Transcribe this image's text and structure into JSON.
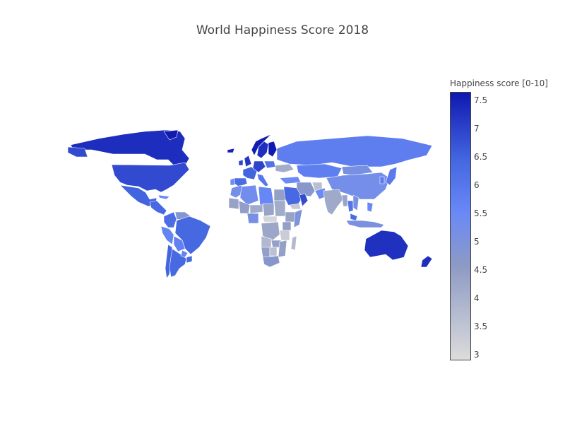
{
  "title": "World Happiness Score 2018",
  "colorbar": {
    "title": "Happiness score [0-10]",
    "min": 2.9,
    "max": 7.65,
    "ticks": [
      "3",
      "3.5",
      "4",
      "4.5",
      "5",
      "5.5",
      "6",
      "6.5",
      "7",
      "7.5"
    ],
    "colorscale": [
      [
        0.0,
        "#dcdcdc"
      ],
      [
        0.35,
        "#8d9ac4"
      ],
      [
        0.55,
        "#6a89f7"
      ],
      [
        0.75,
        "#4466e0"
      ],
      [
        1.0,
        "#0f18b0"
      ]
    ]
  },
  "countries": [
    {
      "name": "Canada",
      "score": 7.33
    },
    {
      "name": "United States",
      "score": 6.89
    },
    {
      "name": "Mexico",
      "score": 6.49
    },
    {
      "name": "Greenland",
      "score": 7.6
    },
    {
      "name": "Guatemala",
      "score": 6.38
    },
    {
      "name": "Cuba",
      "score": 5.5
    },
    {
      "name": "Colombia",
      "score": 6.26
    },
    {
      "name": "Venezuela",
      "score": 4.81
    },
    {
      "name": "Brazil",
      "score": 6.42
    },
    {
      "name": "Peru",
      "score": 5.66
    },
    {
      "name": "Bolivia",
      "score": 5.75
    },
    {
      "name": "Chile",
      "score": 6.48
    },
    {
      "name": "Argentina",
      "score": 6.39
    },
    {
      "name": "Paraguay",
      "score": 5.68
    },
    {
      "name": "Uruguay",
      "score": 6.38
    },
    {
      "name": "Norway",
      "score": 7.59
    },
    {
      "name": "Sweden",
      "score": 7.31
    },
    {
      "name": "Finland",
      "score": 7.63
    },
    {
      "name": "Iceland",
      "score": 7.5
    },
    {
      "name": "United Kingdom",
      "score": 7.19
    },
    {
      "name": "Ireland",
      "score": 6.98
    },
    {
      "name": "France",
      "score": 6.49
    },
    {
      "name": "Spain",
      "score": 6.31
    },
    {
      "name": "Portugal",
      "score": 5.41
    },
    {
      "name": "Germany",
      "score": 6.97
    },
    {
      "name": "Poland",
      "score": 6.12
    },
    {
      "name": "Italy",
      "score": 6.0
    },
    {
      "name": "Ukraine",
      "score": 4.1
    },
    {
      "name": "Turkey",
      "score": 5.48
    },
    {
      "name": "Russia",
      "score": 5.81
    },
    {
      "name": "Kazakhstan",
      "score": 5.79
    },
    {
      "name": "Mongolia",
      "score": 5.13
    },
    {
      "name": "China",
      "score": 5.25
    },
    {
      "name": "Japan",
      "score": 5.92
    },
    {
      "name": "Korea",
      "score": 5.88
    },
    {
      "name": "Iran",
      "score": 4.71
    },
    {
      "name": "Afghanistan",
      "score": 3.63
    },
    {
      "name": "Pakistan",
      "score": 5.47
    },
    {
      "name": "India",
      "score": 4.19
    },
    {
      "name": "Saudi Arabia",
      "score": 6.37
    },
    {
      "name": "Yemen",
      "score": 3.36
    },
    {
      "name": "Oman",
      "score": 6.85
    },
    {
      "name": "Thailand",
      "score": 6.07
    },
    {
      "name": "Myanmar",
      "score": 4.31
    },
    {
      "name": "Vietnam",
      "score": 5.1
    },
    {
      "name": "Malaysia",
      "score": 6.32
    },
    {
      "name": "Indonesia",
      "score": 5.09
    },
    {
      "name": "Philippines",
      "score": 5.52
    },
    {
      "name": "Australia",
      "score": 7.27
    },
    {
      "name": "New Zealand",
      "score": 7.32
    },
    {
      "name": "Morocco",
      "score": 5.25
    },
    {
      "name": "Algeria",
      "score": 5.3
    },
    {
      "name": "Libya",
      "score": 5.57
    },
    {
      "name": "Egypt",
      "score": 4.42
    },
    {
      "name": "Mali",
      "score": 4.45
    },
    {
      "name": "Niger",
      "score": 4.17
    },
    {
      "name": "Chad",
      "score": 4.3
    },
    {
      "name": "Sudan",
      "score": 4.14
    },
    {
      "name": "Mauritania",
      "score": 4.36
    },
    {
      "name": "Nigeria",
      "score": 5.16
    },
    {
      "name": "Central African Republic",
      "score": 3.08
    },
    {
      "name": "Ethiopia",
      "score": 4.35
    },
    {
      "name": "Somalia",
      "score": 4.98
    },
    {
      "name": "DR Congo",
      "score": 4.25
    },
    {
      "name": "Kenya",
      "score": 4.41
    },
    {
      "name": "Tanzania",
      "score": 3.3
    },
    {
      "name": "Angola",
      "score": 3.8
    },
    {
      "name": "Zambia",
      "score": 4.38
    },
    {
      "name": "Namibia",
      "score": 4.44
    },
    {
      "name": "Botswana",
      "score": 3.59
    },
    {
      "name": "Mozambique",
      "score": 4.42
    },
    {
      "name": "South Africa",
      "score": 4.72
    },
    {
      "name": "Madagascar",
      "score": 3.77
    }
  ]
}
